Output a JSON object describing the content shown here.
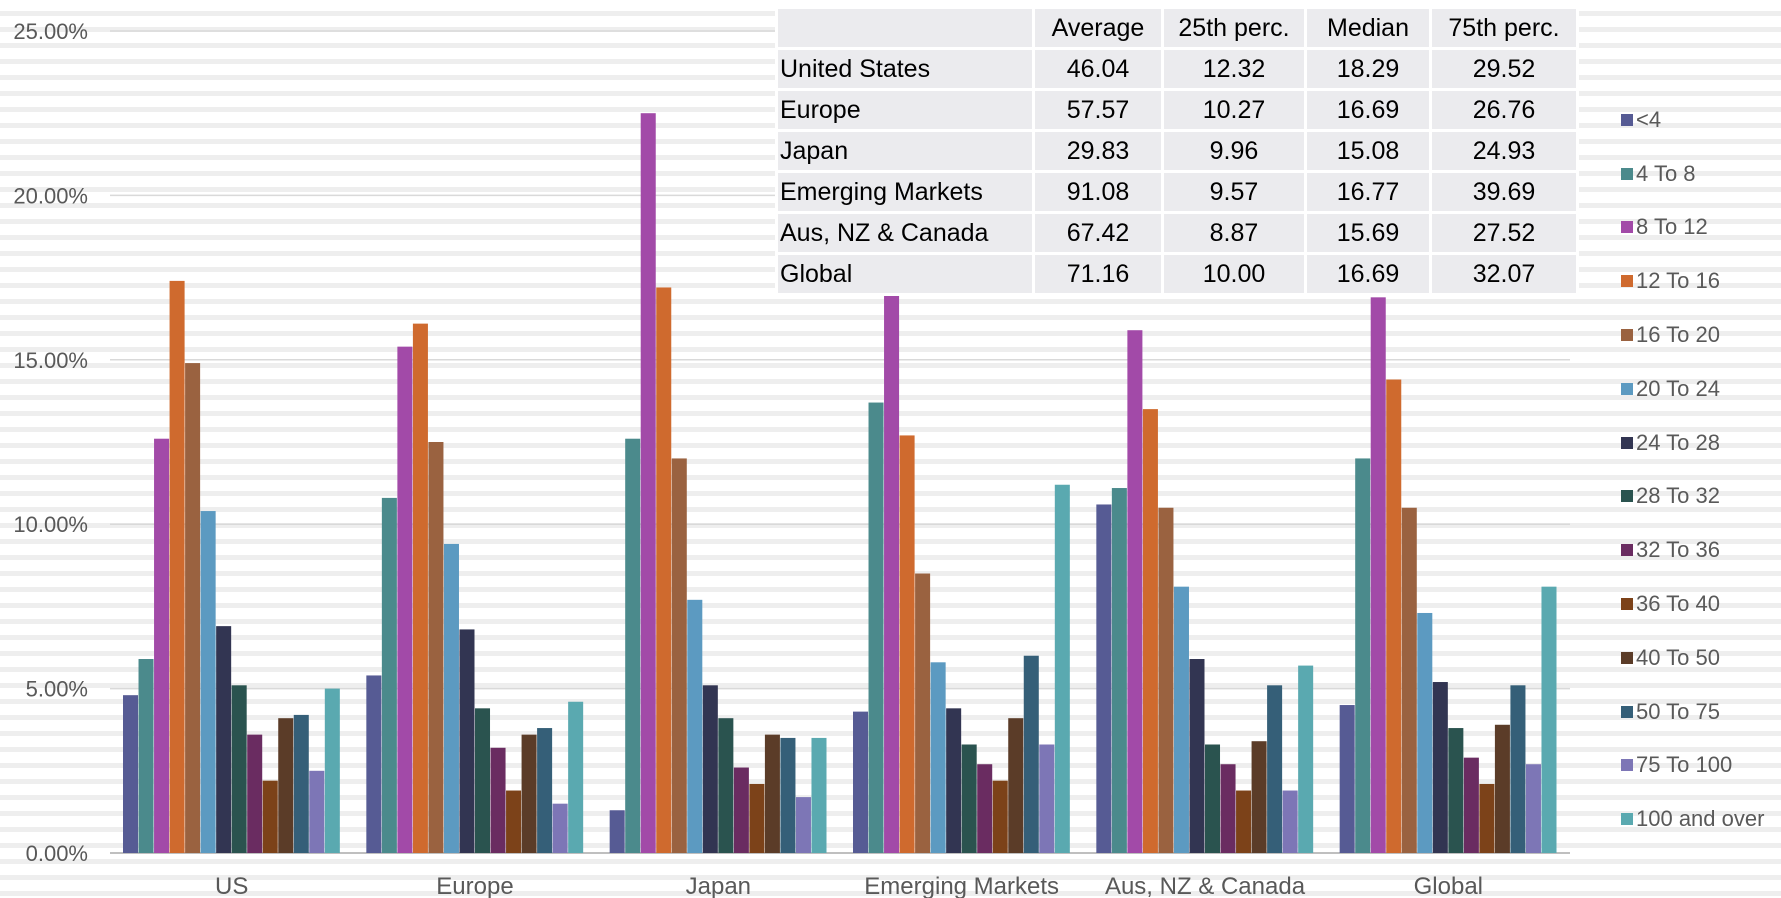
{
  "chart_data": {
    "type": "bar",
    "categories": [
      "US",
      "Europe",
      "Japan",
      "Emerging Markets",
      "Aus, NZ & Canada",
      "Global"
    ],
    "ylim": [
      0,
      25
    ],
    "y_ticks": [
      "0.00%",
      "5.00%",
      "10.00%",
      "15.00%",
      "20.00%",
      "25.00%"
    ],
    "y_tick_values": [
      0,
      5,
      10,
      15,
      20,
      25
    ],
    "grid": true,
    "legend_position": "right",
    "series": [
      {
        "name": "<4",
        "color": "#565b94",
        "values": [
          4.8,
          5.4,
          1.3,
          4.3,
          10.6,
          4.5
        ]
      },
      {
        "name": "4 To 8",
        "color": "#4b8a8c",
        "values": [
          5.9,
          10.8,
          12.6,
          13.7,
          11.1,
          12.0
        ]
      },
      {
        "name": "8 To 12",
        "color": "#a24aa8",
        "values": [
          12.6,
          15.4,
          22.5,
          17.1,
          15.9,
          16.9
        ]
      },
      {
        "name": "12 To 16",
        "color": "#cf6a2e",
        "values": [
          17.4,
          16.1,
          17.2,
          12.7,
          13.5,
          14.4
        ]
      },
      {
        "name": "16 To 20",
        "color": "#9a6240",
        "values": [
          14.9,
          12.5,
          12.0,
          8.5,
          10.5,
          10.5
        ]
      },
      {
        "name": "20 To 24",
        "color": "#5c9ac1",
        "values": [
          10.4,
          9.4,
          7.7,
          5.8,
          8.1,
          7.3
        ]
      },
      {
        "name": "24 To 28",
        "color": "#323552",
        "values": [
          6.9,
          6.8,
          5.1,
          4.4,
          5.9,
          5.2
        ]
      },
      {
        "name": "28 To 32",
        "color": "#2a534f",
        "values": [
          5.1,
          4.4,
          4.1,
          3.3,
          3.3,
          3.8
        ]
      },
      {
        "name": "32 To 36",
        "color": "#6a2c61",
        "values": [
          3.6,
          3.2,
          2.6,
          2.7,
          2.7,
          2.9
        ]
      },
      {
        "name": "36 To 40",
        "color": "#7c4219",
        "values": [
          2.2,
          1.9,
          2.1,
          2.2,
          1.9,
          2.1
        ]
      },
      {
        "name": "40 To 50",
        "color": "#5b3c28",
        "values": [
          4.1,
          3.6,
          3.6,
          4.1,
          3.4,
          3.9
        ]
      },
      {
        "name": "50 To 75",
        "color": "#355f78",
        "values": [
          4.2,
          3.8,
          3.5,
          6.0,
          5.1,
          5.1
        ]
      },
      {
        "name": "75 To 100",
        "color": "#7d76b6",
        "values": [
          2.5,
          1.5,
          1.7,
          3.3,
          1.9,
          2.7
        ]
      },
      {
        "name": "100 and over",
        "color": "#5aa9b0",
        "values": [
          5.0,
          4.6,
          3.5,
          11.2,
          5.7,
          8.1
        ]
      }
    ]
  },
  "table": {
    "headers": [
      "",
      "Average",
      "25th perc.",
      "Median",
      "75th perc."
    ],
    "rows": [
      {
        "label": "United States",
        "values": [
          "46.04",
          "12.32",
          "18.29",
          "29.52"
        ]
      },
      {
        "label": "Europe",
        "values": [
          "57.57",
          "10.27",
          "16.69",
          "26.76"
        ]
      },
      {
        "label": "Japan",
        "values": [
          "29.83",
          "9.96",
          "15.08",
          "24.93"
        ]
      },
      {
        "label": "Emerging Markets",
        "values": [
          "91.08",
          "9.57",
          "16.77",
          "39.69"
        ]
      },
      {
        "label": "Aus, NZ & Canada",
        "values": [
          "67.42",
          "8.87",
          "15.69",
          "27.52"
        ]
      },
      {
        "label": "Global",
        "values": [
          "71.16",
          "10.00",
          "16.69",
          "32.07"
        ]
      }
    ]
  }
}
